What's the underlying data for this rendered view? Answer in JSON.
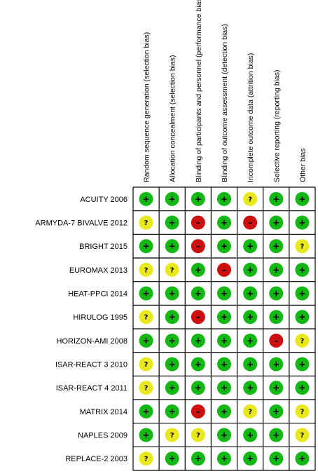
{
  "chart_data": {
    "type": "table",
    "columns": [
      "Random sequence generation (selection bias)",
      "Allocation concealment (selection bias)",
      "Blinding of participants and personnel (performance bias)",
      "Blinding of outcome assessment (detection bias)",
      "Incomplete outcome data (attrition bias)",
      "Selective reporting (reporting bias)",
      "Other bias"
    ],
    "rows": [
      "ACUITY 2006",
      "ARMYDA-7 BIVALVE 2012",
      "BRIGHT 2015",
      "EUROMAX 2013",
      "HEAT-PPCI 2014",
      "HIRULOG 1995",
      "HORIZON-AMI 2008",
      "ISAR-REACT 3 2010",
      "ISAR-REACT 4 2011",
      "MATRIX 2014",
      "NAPLES 2009",
      "REPLACE-2 2003"
    ],
    "values": [
      [
        "+",
        "+",
        "+",
        "+",
        "?",
        "+",
        "+"
      ],
      [
        "?",
        "+",
        "-",
        "+",
        "-",
        "+",
        "+"
      ],
      [
        "+",
        "+",
        "-",
        "+",
        "+",
        "+",
        "?"
      ],
      [
        "?",
        "?",
        "+",
        "-",
        "+",
        "+",
        "+"
      ],
      [
        "+",
        "+",
        "+",
        "+",
        "+",
        "+",
        "+"
      ],
      [
        "?",
        "+",
        "-",
        "+",
        "+",
        "+",
        "+"
      ],
      [
        "+",
        "+",
        "+",
        "+",
        "+",
        "-",
        "?"
      ],
      [
        "?",
        "+",
        "+",
        "+",
        "+",
        "+",
        "+"
      ],
      [
        "?",
        "+",
        "+",
        "+",
        "+",
        "+",
        "+"
      ],
      [
        "+",
        "+",
        "-",
        "+",
        "?",
        "+",
        "?"
      ],
      [
        "+",
        "?",
        "?",
        "+",
        "+",
        "+",
        "?"
      ],
      [
        "?",
        "+",
        "+",
        "+",
        "+",
        "+",
        "+"
      ]
    ],
    "legend_symbols": {
      "+": {
        "symbol": "+",
        "color": "#14b814"
      },
      "?": {
        "symbol": "?",
        "color": "#e8e81c"
      },
      "-": {
        "symbol": "–",
        "color": "#cc1010"
      }
    },
    "grid_color": "#000000"
  }
}
